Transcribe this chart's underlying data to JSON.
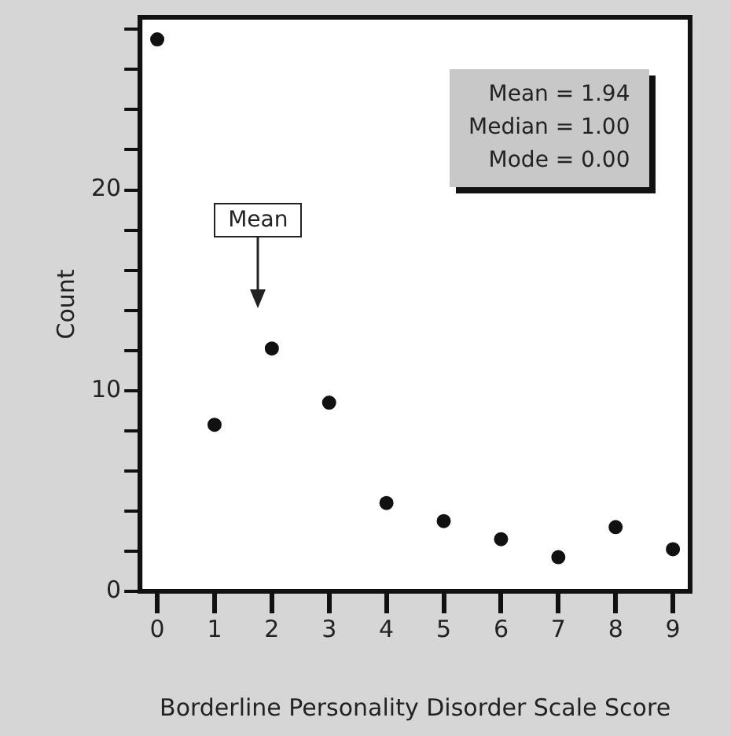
{
  "chart_data": {
    "type": "scatter",
    "xlabel": "Borderline Personality Disorder Scale Score",
    "ylabel": "Count",
    "x": [
      0,
      1,
      2,
      3,
      4,
      5,
      6,
      7,
      8,
      9
    ],
    "values": [
      27.5,
      8.3,
      12.1,
      9.4,
      4.4,
      3.5,
      2.6,
      1.7,
      3.2,
      2.1
    ],
    "color": "#111111",
    "marker": "circle",
    "xlim": [
      -0.3,
      9.3
    ],
    "xticks": [
      0,
      1,
      2,
      3,
      4,
      5,
      6,
      7,
      8,
      9
    ],
    "ylim": [
      0,
      28.6
    ],
    "yticks": [
      0,
      {
        "value": 2,
        "label": null
      },
      {
        "value": 4,
        "label": null
      },
      {
        "value": 6,
        "label": null
      },
      {
        "value": 8,
        "label": null
      },
      10,
      {
        "value": 12,
        "label": null
      },
      {
        "value": 14,
        "label": null
      },
      {
        "value": 16,
        "label": null
      },
      {
        "value": 18,
        "label": null
      },
      20,
      {
        "value": 22,
        "label": null
      },
      {
        "value": 24,
        "label": null
      },
      {
        "value": 26,
        "label": null
      },
      {
        "value": 28,
        "label": null
      }
    ],
    "grid": false,
    "legend": false,
    "annotations": [
      "Mean",
      "Mean  = 1.94",
      "Median  = 1.00",
      "Mode  = 0.00"
    ]
  }
}
